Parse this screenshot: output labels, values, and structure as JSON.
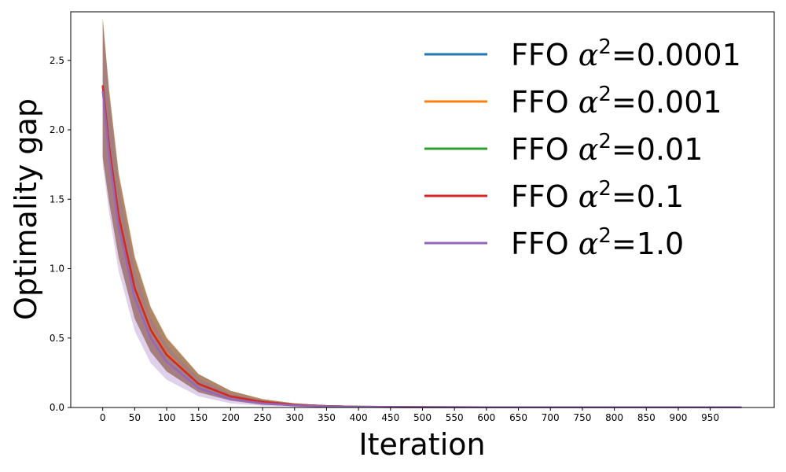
{
  "chart_data": {
    "type": "line",
    "xlabel": "Iteration",
    "ylabel": "Optimality gap",
    "xlim": [
      -50,
      1050
    ],
    "ylim": [
      0.0,
      2.85
    ],
    "xticks": [
      0,
      50,
      100,
      150,
      200,
      250,
      300,
      350,
      400,
      450,
      500,
      550,
      600,
      650,
      700,
      750,
      800,
      850,
      900,
      950
    ],
    "yticks": [
      0.0,
      0.5,
      1.0,
      1.5,
      2.0,
      2.5
    ],
    "ytick_labels": [
      "0.0",
      "0.5",
      "1.0",
      "1.5",
      "2.0",
      "2.5"
    ],
    "legend_position": "top-right",
    "x": [
      0,
      10,
      25,
      50,
      75,
      100,
      150,
      200,
      250,
      300,
      350,
      400,
      500,
      600,
      700,
      800,
      900,
      999
    ],
    "series": [
      {
        "name": "FFO α²=0.0001",
        "label_prefix": "FFO ",
        "label_value": "=0.0001",
        "color": "#1f77b4",
        "values": [
          2.32,
          1.88,
          1.38,
          0.86,
          0.56,
          0.38,
          0.17,
          0.08,
          0.04,
          0.02,
          0.01,
          0.005,
          0.002,
          0.001,
          0.001,
          0.001,
          0.001,
          0.001
        ],
        "band_upper": [
          2.8,
          2.28,
          1.68,
          1.08,
          0.72,
          0.5,
          0.24,
          0.12,
          0.06,
          0.03,
          0.015,
          0.008,
          0.003,
          0.002,
          0.002,
          0.002,
          0.002,
          0.002
        ],
        "band_lower": [
          1.8,
          1.48,
          1.08,
          0.64,
          0.4,
          0.26,
          0.11,
          0.05,
          0.02,
          0.01,
          0.005,
          0.002,
          0.001,
          0.0,
          0.0,
          0.0,
          0.0,
          0.0
        ]
      },
      {
        "name": "FFO α²=0.001",
        "label_prefix": "FFO ",
        "label_value": "=0.001",
        "color": "#ff7f0e",
        "values": [
          2.32,
          1.88,
          1.39,
          0.87,
          0.57,
          0.39,
          0.17,
          0.08,
          0.04,
          0.02,
          0.01,
          0.005,
          0.002,
          0.001,
          0.001,
          0.001,
          0.001,
          0.001
        ],
        "band_upper": [
          2.82,
          2.3,
          1.7,
          1.1,
          0.73,
          0.51,
          0.24,
          0.12,
          0.06,
          0.03,
          0.015,
          0.008,
          0.003,
          0.002,
          0.002,
          0.002,
          0.002,
          0.002
        ],
        "band_lower": [
          1.8,
          1.48,
          1.08,
          0.64,
          0.4,
          0.26,
          0.11,
          0.05,
          0.02,
          0.01,
          0.005,
          0.002,
          0.001,
          0.0,
          0.0,
          0.0,
          0.0,
          0.0
        ]
      },
      {
        "name": "FFO α²=0.01",
        "label_prefix": "FFO ",
        "label_value": "=0.01",
        "color": "#2ca02c",
        "values": [
          2.32,
          1.88,
          1.38,
          0.86,
          0.56,
          0.38,
          0.17,
          0.08,
          0.04,
          0.02,
          0.01,
          0.005,
          0.002,
          0.001,
          0.001,
          0.001,
          0.001,
          0.001
        ],
        "band_upper": [
          2.8,
          2.28,
          1.68,
          1.08,
          0.72,
          0.5,
          0.24,
          0.12,
          0.06,
          0.03,
          0.015,
          0.008,
          0.003,
          0.002,
          0.002,
          0.002,
          0.002,
          0.002
        ],
        "band_lower": [
          1.8,
          1.48,
          1.08,
          0.64,
          0.4,
          0.26,
          0.11,
          0.05,
          0.02,
          0.01,
          0.005,
          0.002,
          0.001,
          0.0,
          0.0,
          0.0,
          0.0,
          0.0
        ]
      },
      {
        "name": "FFO α²=0.1",
        "label_prefix": "FFO ",
        "label_value": "=0.1",
        "color": "#d62728",
        "values": [
          2.32,
          1.88,
          1.38,
          0.86,
          0.56,
          0.38,
          0.17,
          0.08,
          0.04,
          0.02,
          0.01,
          0.005,
          0.002,
          0.001,
          0.001,
          0.001,
          0.001,
          0.001
        ],
        "band_upper": [
          2.8,
          2.28,
          1.68,
          1.08,
          0.72,
          0.5,
          0.24,
          0.12,
          0.06,
          0.03,
          0.015,
          0.008,
          0.003,
          0.002,
          0.002,
          0.002,
          0.002,
          0.002
        ],
        "band_lower": [
          1.8,
          1.48,
          1.08,
          0.64,
          0.4,
          0.26,
          0.11,
          0.05,
          0.02,
          0.01,
          0.005,
          0.002,
          0.001,
          0.0,
          0.0,
          0.0,
          0.0,
          0.0
        ]
      },
      {
        "name": "FFO α²=1.0",
        "label_prefix": "FFO ",
        "label_value": "=1.0",
        "color": "#9467bd",
        "values": [
          2.28,
          1.82,
          1.3,
          0.79,
          0.5,
          0.33,
          0.14,
          0.06,
          0.03,
          0.015,
          0.008,
          0.004,
          0.002,
          0.001,
          0.001,
          0.001,
          0.001,
          0.001
        ],
        "band_upper": [
          2.75,
          2.22,
          1.6,
          1.0,
          0.65,
          0.45,
          0.21,
          0.1,
          0.05,
          0.025,
          0.012,
          0.006,
          0.003,
          0.002,
          0.002,
          0.002,
          0.002,
          0.002
        ],
        "band_lower": [
          1.75,
          1.4,
          0.98,
          0.55,
          0.32,
          0.2,
          0.08,
          0.03,
          0.012,
          0.005,
          0.002,
          0.001,
          0.0,
          0.0,
          0.0,
          0.0,
          0.0,
          0.0
        ]
      }
    ]
  }
}
